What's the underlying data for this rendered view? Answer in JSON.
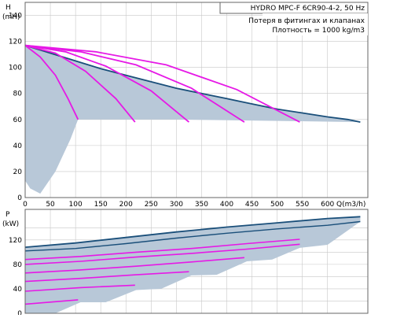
{
  "chart_data": [
    {
      "type": "line",
      "name": "head-chart",
      "ylabel_top": "H",
      "ylabel_unit": "(mH)",
      "xlim": [
        0,
        680
      ],
      "ylim": [
        0,
        150
      ],
      "yticks": [
        0,
        20,
        40,
        60,
        80,
        100,
        120,
        140
      ],
      "xticks": [
        0,
        50,
        100,
        150,
        200,
        250,
        300,
        350,
        400,
        450,
        500,
        550,
        600
      ],
      "x_axis_label": "Q(m3/h)",
      "info": {
        "title": "HYDRO MPC-F 6CR90-4-2, 50 Hz",
        "line1": "Потеря в фитингах и клапанах",
        "line2": "Плотность = 1000 kg/m3"
      },
      "grid": true,
      "envelope_upper": {
        "x": [
          0,
          50,
          100,
          150,
          200,
          250,
          300,
          350,
          400,
          450,
          500,
          550,
          600,
          640,
          665
        ],
        "y": [
          117,
          111,
          105,
          99,
          94,
          89,
          84,
          80,
          76,
          72,
          68,
          65,
          62,
          60,
          58
        ]
      },
      "envelope_lower": {
        "x": [
          0,
          10,
          30,
          60,
          90,
          105,
          120,
          300,
          665
        ],
        "y": [
          13,
          7,
          3,
          20,
          45,
          60,
          60,
          60,
          58
        ]
      },
      "pump_curves": [
        {
          "x": [
            0,
            30,
            60,
            85,
            105
          ],
          "y": [
            117,
            108,
            94,
            76,
            60
          ]
        },
        {
          "x": [
            0,
            60,
            120,
            180,
            218
          ],
          "y": [
            117,
            111,
            97,
            76,
            58
          ]
        },
        {
          "x": [
            0,
            80,
            160,
            250,
            325
          ],
          "y": [
            117,
            112,
            101,
            82,
            58
          ]
        },
        {
          "x": [
            0,
            110,
            220,
            330,
            435
          ],
          "y": [
            117,
            112,
            102,
            84,
            58
          ]
        },
        {
          "x": [
            0,
            140,
            280,
            420,
            545
          ],
          "y": [
            117,
            112,
            102,
            83,
            58
          ]
        }
      ],
      "colors": {
        "envelope": "#b8c8d8",
        "envelope_line": "#1a4f7a",
        "pump": "#e619e6",
        "grid": "#c8c8c8"
      }
    },
    {
      "type": "line",
      "name": "power-chart",
      "ylabel_top": "P",
      "ylabel_unit": "(kW)",
      "xlim": [
        0,
        680
      ],
      "ylim": [
        0,
        170
      ],
      "yticks": [
        0,
        40,
        80,
        120
      ],
      "yticks_minor": [
        20,
        60,
        100,
        140
      ],
      "grid": true,
      "band_upper": {
        "x": [
          0,
          100,
          200,
          300,
          400,
          500,
          600,
          665
        ],
        "y": [
          108,
          115,
          124,
          133,
          141,
          148,
          155,
          158
        ]
      },
      "band_lower": {
        "x": [
          0,
          60,
          110,
          160,
          220,
          270,
          330,
          380,
          440,
          490,
          545,
          600,
          665
        ],
        "y": [
          0,
          0,
          18,
          18,
          38,
          40,
          62,
          63,
          85,
          88,
          107,
          112,
          150
        ]
      },
      "envelope_top": {
        "x": [
          0,
          100,
          200,
          300,
          400,
          500,
          600,
          665
        ],
        "y": [
          108,
          115,
          124,
          133,
          141,
          148,
          155,
          158
        ]
      },
      "envelope_second": {
        "x": [
          0,
          100,
          200,
          300,
          400,
          500,
          600,
          665
        ],
        "y": [
          102,
          106,
          114,
          123,
          131,
          138,
          144,
          150
        ]
      },
      "pump_lines": [
        {
          "x": [
            0,
            105
          ],
          "y": [
            15,
            22
          ]
        },
        {
          "x": [
            0,
            110,
            218
          ],
          "y": [
            36,
            42,
            46
          ]
        },
        {
          "x": [
            0,
            110,
            220,
            325
          ],
          "y": [
            52,
            57,
            63,
            68
          ]
        },
        {
          "x": [
            0,
            110,
            220,
            330,
            435
          ],
          "y": [
            66,
            71,
            77,
            84,
            91
          ]
        },
        {
          "x": [
            0,
            110,
            220,
            330,
            440,
            545
          ],
          "y": [
            80,
            85,
            92,
            98,
            105,
            113
          ]
        },
        {
          "x": [
            0,
            110,
            220,
            330,
            440,
            545
          ],
          "y": [
            88,
            93,
            100,
            106,
            114,
            121
          ]
        }
      ],
      "colors": {
        "band": "#b8c8d8",
        "envelope_line": "#1a4f7a",
        "pump": "#e619e6",
        "grid": "#c8c8c8"
      }
    }
  ]
}
